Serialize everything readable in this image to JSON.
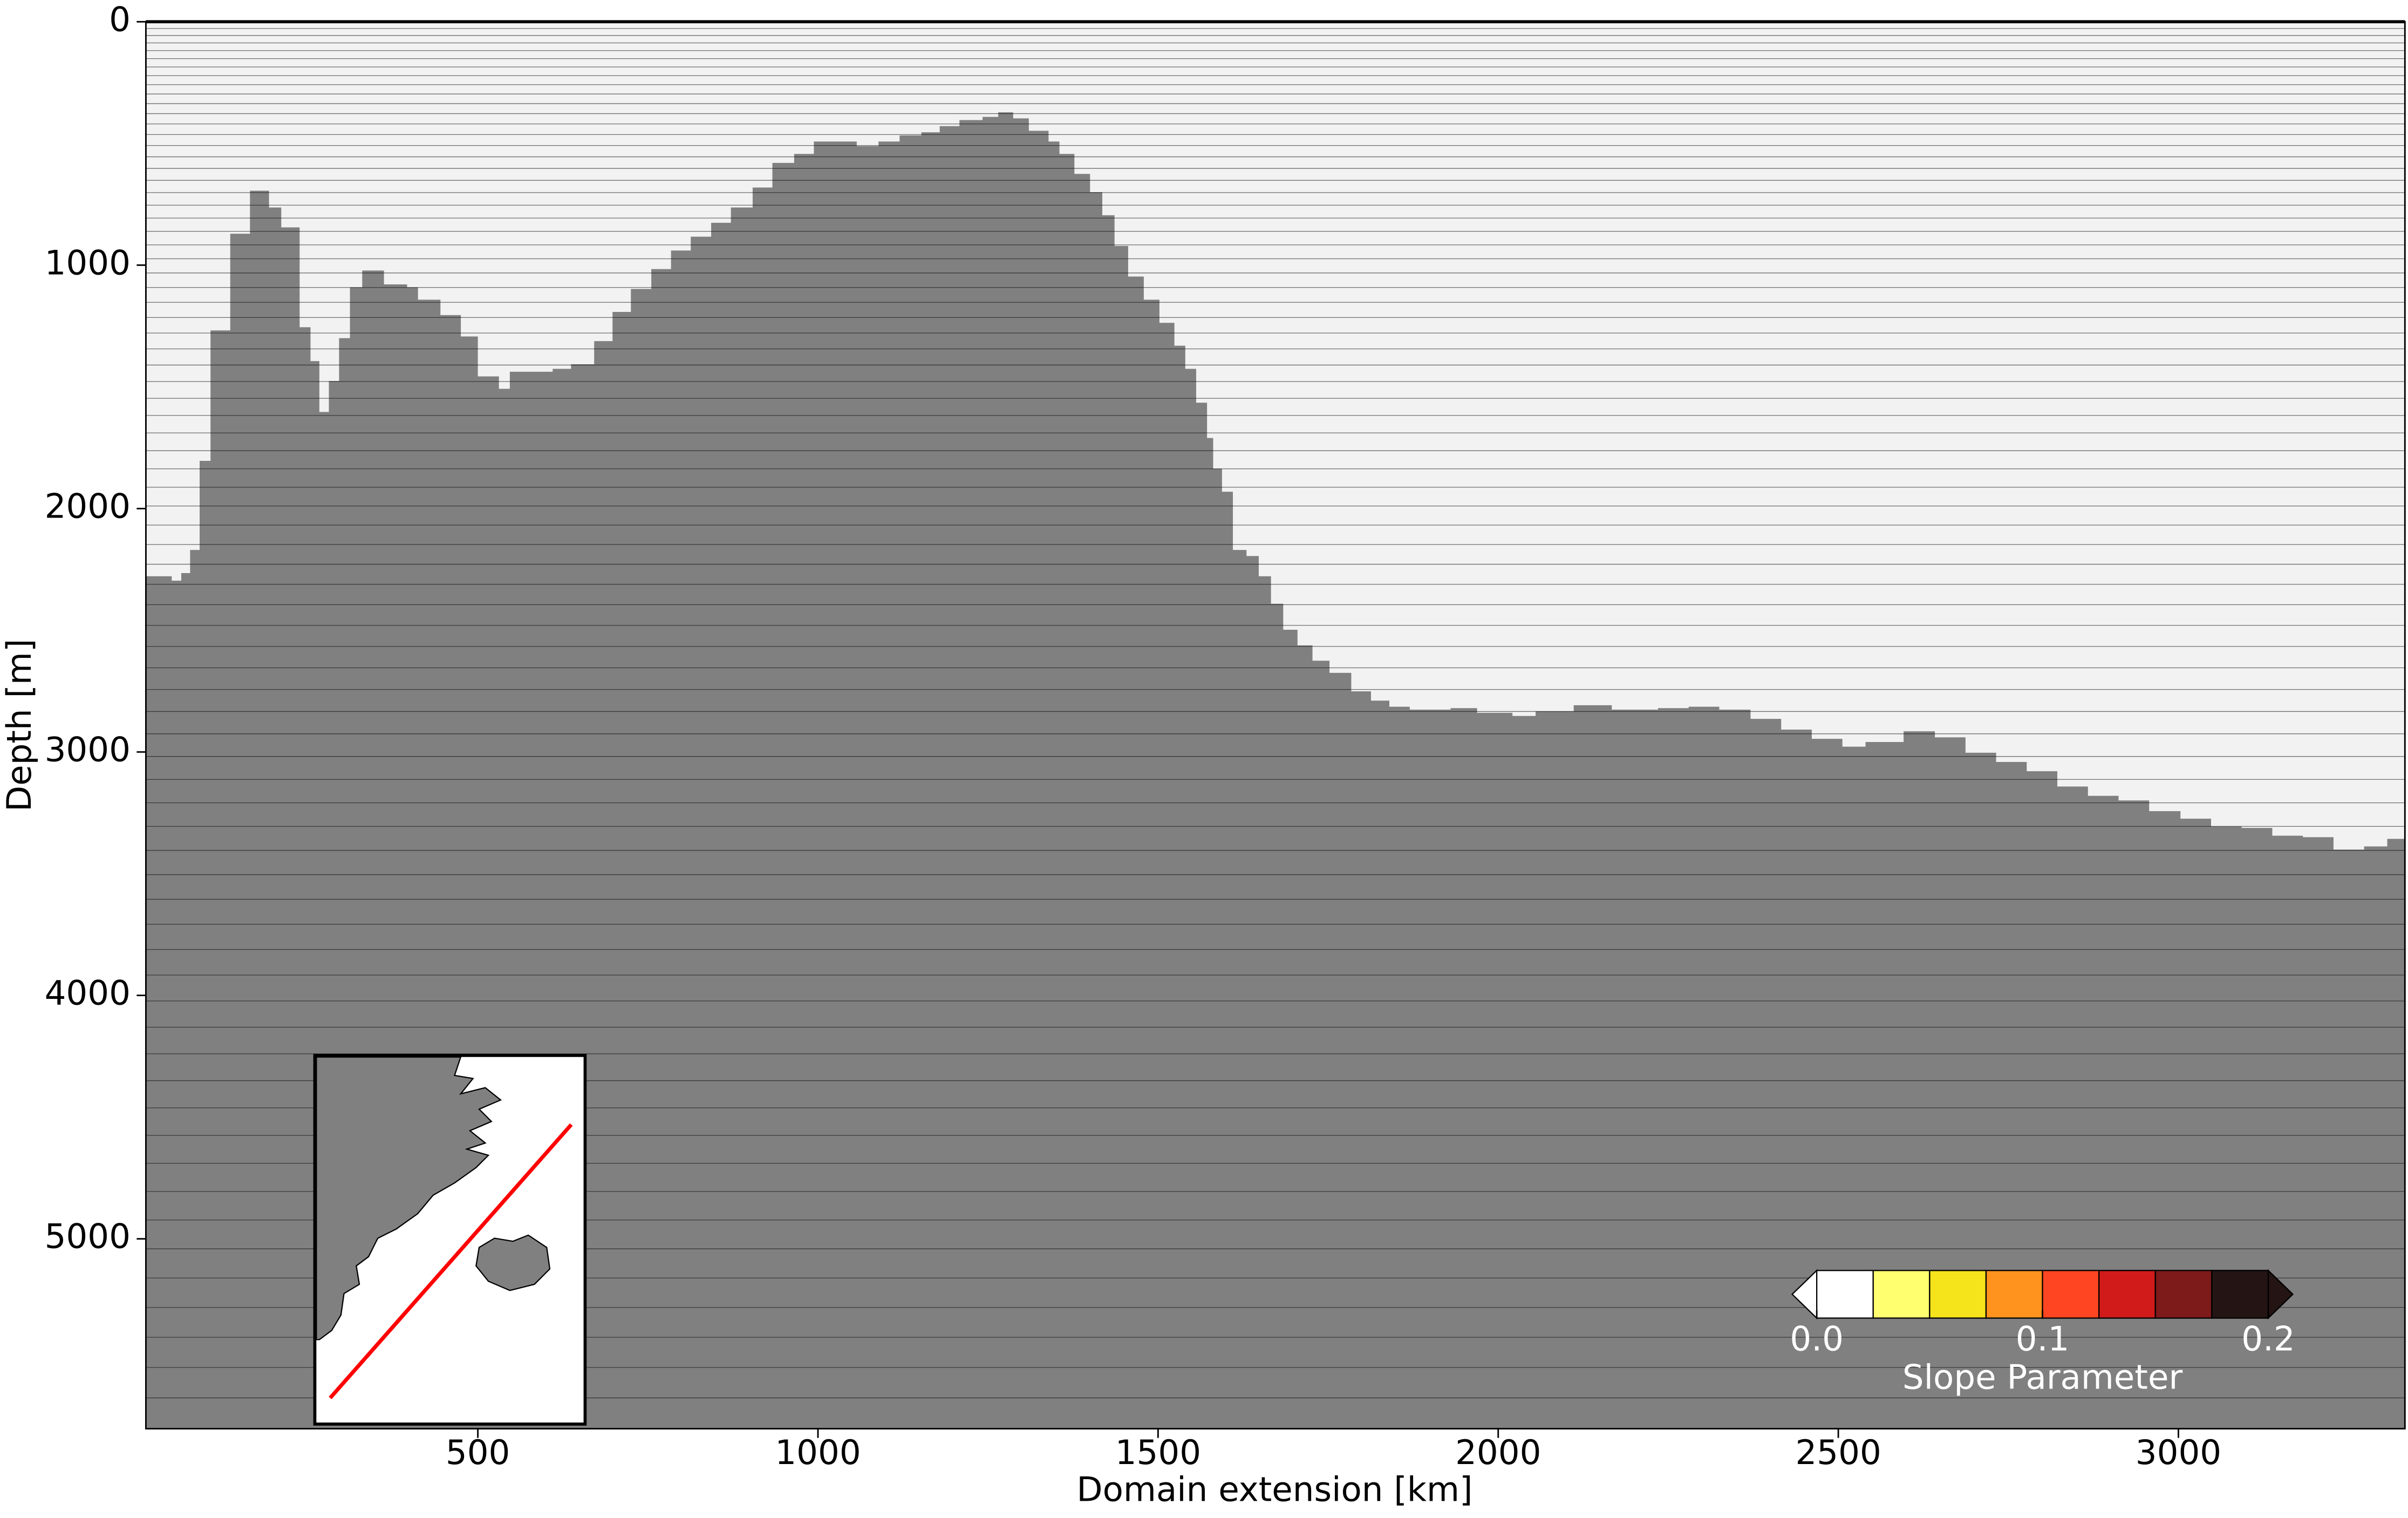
{
  "chart_data": {
    "type": "area",
    "xlabel": "Domain extension [km]",
    "ylabel": "Depth [m]",
    "xlim": [
      12,
      3333
    ],
    "ylim": [
      0,
      5780
    ],
    "y_inverted": true,
    "xticks": [
      500,
      1000,
      1500,
      2000,
      2500,
      3000
    ],
    "yticks": [
      0,
      1000,
      2000,
      3000,
      4000,
      5000
    ],
    "color": "#808080",
    "background": "#f2f2f2",
    "x": [
      12,
      50,
      64,
      77,
      91,
      107,
      136,
      165,
      193,
      211,
      238,
      254,
      267,
      281,
      296,
      312,
      330,
      362,
      396,
      412,
      445,
      475,
      500,
      531,
      547,
      610,
      637,
      671,
      698,
      725,
      755,
      784,
      813,
      843,
      872,
      904,
      933,
      965,
      994,
      1028,
      1057,
      1089,
      1120,
      1152,
      1179,
      1208,
      1242,
      1265,
      1287,
      1310,
      1339,
      1355,
      1377,
      1400,
      1418,
      1436,
      1456,
      1479,
      1502,
      1524,
      1540,
      1556,
      1572,
      1581,
      1594,
      1610,
      1630,
      1648,
      1666,
      1684,
      1705,
      1727,
      1752,
      1784,
      1813,
      1840,
      1870,
      1930,
      1969,
      2021,
      2055,
      2111,
      2167,
      2235,
      2280,
      2325,
      2371,
      2416,
      2461,
      2506,
      2540,
      2596,
      2642,
      2687,
      2732,
      2777,
      2822,
      2867,
      2912,
      2957,
      3003,
      3048,
      3093,
      3138,
      3183,
      3228,
      3273,
      3307
    ],
    "values": [
      2278,
      2296,
      2265,
      2170,
      1804,
      1268,
      871,
      694,
      763,
      845,
      1255,
      1394,
      1603,
      1476,
      1300,
      1091,
      1022,
      1079,
      1091,
      1142,
      1205,
      1293,
      1457,
      1508,
      1438,
      1426,
      1407,
      1312,
      1192,
      1098,
      1016,
      940,
      883,
      826,
      763,
      681,
      580,
      543,
      492,
      492,
      511,
      492,
      467,
      454,
      429,
      404,
      391,
      372,
      397,
      448,
      492,
      543,
      625,
      700,
      795,
      921,
      1047,
      1142,
      1237,
      1331,
      1426,
      1565,
      1710,
      1836,
      1931,
      2170,
      2195,
      2278,
      2391,
      2498,
      2562,
      2625,
      2675,
      2751,
      2789,
      2814,
      2826,
      2820,
      2839,
      2852,
      2833,
      2808,
      2826,
      2820,
      2814,
      2826,
      2864,
      2908,
      2946,
      2978,
      2959,
      2915,
      2940,
      3003,
      3041,
      3079,
      3142,
      3180,
      3199,
      3243,
      3274,
      3306,
      3312,
      3344,
      3350,
      3401,
      3388,
      3357
    ],
    "colorbar": {
      "label": "Slope Parameter",
      "bounds": [
        0,
        0.025,
        0.05,
        0.075,
        0.1,
        0.125,
        0.15,
        0.175,
        0.2
      ],
      "colors": [
        "#ffffff",
        "#ffff70",
        "#f5e31c",
        "#ff931e",
        "#ff4521",
        "#d11b1b",
        "#7d1a1a",
        "#241414"
      ],
      "ticks": [
        {
          "value": 0,
          "label": "0.0"
        },
        0.1,
        0.2
      ]
    }
  }
}
